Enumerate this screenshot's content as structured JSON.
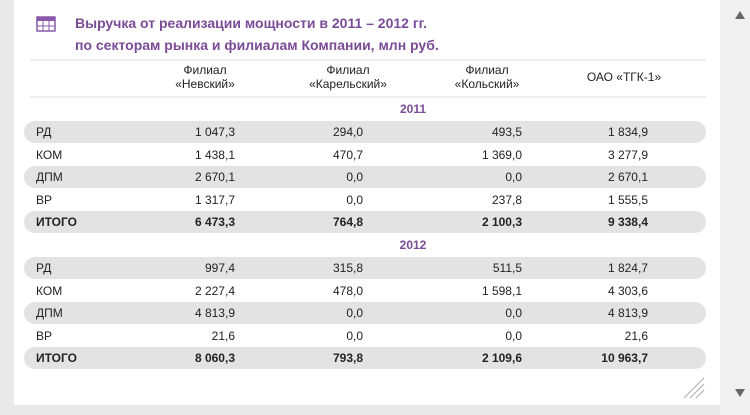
{
  "header": {
    "title": [
      "Выручка от реализации мощности в 2011 – 2012 гг.",
      "по секторам рынка и филиалам Компании, млн руб."
    ]
  },
  "table": {
    "columns": [
      [
        "Филиал",
        "«Невский»"
      ],
      [
        "Филиал",
        "«Карельский»"
      ],
      [
        "Филиал",
        "«Кольский»"
      ],
      [
        "ОАО «ТГК-1»"
      ]
    ],
    "sections": [
      {
        "year": "2011",
        "rows": [
          [
            "РД",
            "1 047,3",
            "294,0",
            "493,5",
            "1 834,9"
          ],
          [
            "КОМ",
            "1 438,1",
            "470,7",
            "1 369,0",
            "3 277,9"
          ],
          [
            "ДПМ",
            "2 670,1",
            "0,0",
            "0,0",
            "2 670,1"
          ],
          [
            "ВР",
            "1 317,7",
            "0,0",
            "237,8",
            "1 555,5"
          ],
          [
            "ИТОГО",
            "6 473,3",
            "764,8",
            "2 100,3",
            "9 338,4"
          ]
        ]
      },
      {
        "year": "2012",
        "rows": [
          [
            "РД",
            "997,4",
            "315,8",
            "511,5",
            "1 824,7"
          ],
          [
            "КОМ",
            "2 227,4",
            "478,0",
            "1 598,1",
            "4 303,6"
          ],
          [
            "ДПМ",
            "4 813,9",
            "0,0",
            "0,0",
            "4 813,9"
          ],
          [
            "ВР",
            "21,6",
            "0,0",
            "0,0",
            "21,6"
          ],
          [
            "ИТОГО",
            "8 060,3",
            "793,8",
            "2 109,6",
            "10 963,7"
          ]
        ]
      }
    ]
  }
}
